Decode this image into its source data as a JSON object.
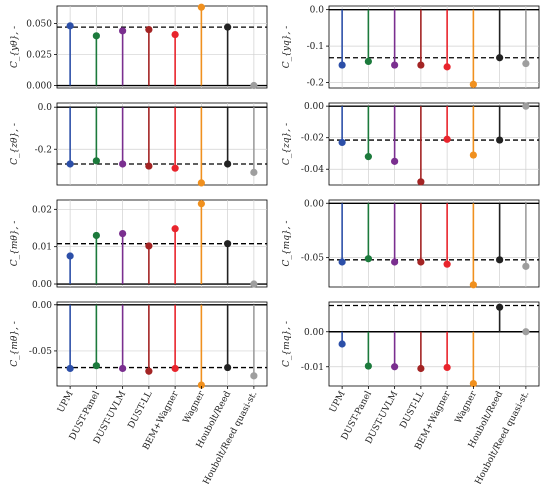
{
  "categories": [
    "UPM",
    "DUST-Panel",
    "DUST-UVLM",
    "DUST-LL",
    "BEM+Wagner",
    "Wagner",
    "Houbolt/Reed",
    "Houbolt/Reed quasi-st."
  ],
  "series_colors": [
    "#2c4fa8",
    "#1c7a3c",
    "#7a2f8f",
    "#a32424",
    "#e8242c",
    "#f0901e",
    "#222222",
    "#9e9e9e"
  ],
  "chart_data": [
    {
      "type": "stem",
      "ylabel": "C_{yθ}, -",
      "yticks": [
        "0.000",
        "0.025",
        "0.050"
      ],
      "ytick_values": [
        0.0,
        0.025,
        0.05
      ],
      "ylim": [
        -0.002,
        0.064
      ],
      "values": [
        0.048,
        0.04,
        0.044,
        0.045,
        0.041,
        0.063,
        0.047,
        0.0
      ],
      "reference": 0.047
    },
    {
      "type": "stem",
      "ylabel": "C_{yq}, -",
      "yticks": [
        "0.0",
        "-0.1",
        "-0.2"
      ],
      "ytick_values": [
        0.0,
        -0.1,
        -0.2
      ],
      "ylim": [
        -0.215,
        0.01
      ],
      "values": [
        -0.152,
        -0.142,
        -0.152,
        -0.152,
        -0.157,
        -0.205,
        -0.132,
        -0.148
      ],
      "reference": -0.132
    },
    {
      "type": "stem",
      "ylabel": "C_{zθ}, -",
      "yticks": [
        "0.0",
        "-0.2"
      ],
      "ytick_values": [
        0.0,
        -0.2
      ],
      "ylim": [
        -0.37,
        0.02
      ],
      "values": [
        -0.27,
        -0.255,
        -0.27,
        -0.28,
        -0.29,
        -0.36,
        -0.27,
        -0.31
      ],
      "reference": -0.27
    },
    {
      "type": "stem",
      "ylabel": "C_{zq}, -",
      "yticks": [
        "0.00",
        "-0.02",
        "-0.04"
      ],
      "ytick_values": [
        0.0,
        -0.02,
        -0.04
      ],
      "ylim": [
        -0.05,
        0.002
      ],
      "values": [
        -0.023,
        -0.032,
        -0.035,
        -0.048,
        -0.021,
        -0.031,
        -0.0215,
        0.0
      ],
      "reference": -0.0215
    },
    {
      "type": "stem",
      "ylabel": "C_{mθ}, -",
      "yticks": [
        "0.00",
        "0.01",
        "0.02"
      ],
      "ytick_values": [
        0.0,
        0.01,
        0.02
      ],
      "ylim": [
        -0.0008,
        0.0225
      ],
      "values": [
        0.0075,
        0.013,
        0.0135,
        0.0102,
        0.0148,
        0.0215,
        0.0108,
        0.0
      ],
      "reference": 0.0108
    },
    {
      "type": "stem",
      "ylabel": "C_{mq}, -",
      "yticks": [
        "0.00",
        "-0.05"
      ],
      "ytick_values": [
        0.0,
        -0.05
      ],
      "ylim": [
        -0.077,
        0.003
      ],
      "values": [
        -0.054,
        -0.051,
        -0.054,
        -0.054,
        -0.056,
        -0.075,
        -0.052,
        -0.058
      ],
      "reference": -0.052
    },
    {
      "type": "stem",
      "ylabel": "C_{mθ}, -",
      "yticks": [
        "0.00",
        "-0.05"
      ],
      "ytick_values": [
        0.0,
        -0.05
      ],
      "ylim": [
        -0.088,
        0.003
      ],
      "values": [
        -0.069,
        -0.066,
        -0.069,
        -0.072,
        -0.069,
        -0.087,
        -0.068,
        -0.077
      ],
      "reference": -0.068
    },
    {
      "type": "stem",
      "ylabel": "C_{mq}, -",
      "yticks": [
        "0.00",
        "-0.01"
      ],
      "ytick_values": [
        0.0,
        -0.01
      ],
      "ylim": [
        -0.0155,
        0.0085
      ],
      "values": [
        -0.0035,
        -0.0098,
        -0.01,
        -0.0105,
        -0.0102,
        -0.0148,
        0.007,
        0.0
      ],
      "reference": 0.0075
    }
  ]
}
